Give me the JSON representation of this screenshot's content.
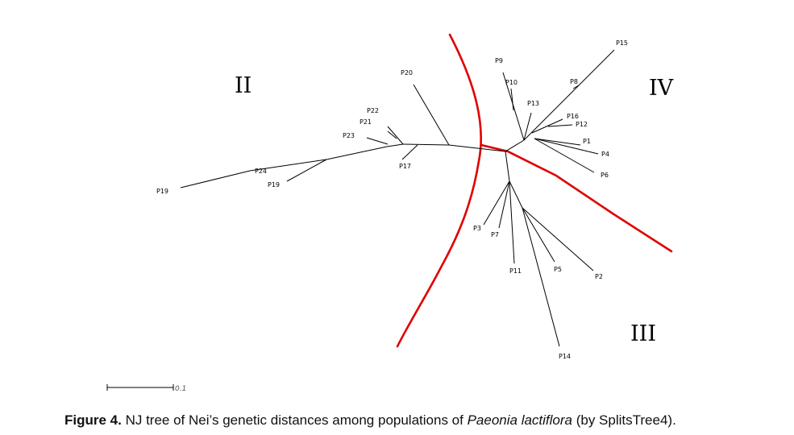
{
  "figure": {
    "caption_label": "Figure 4.",
    "caption_pre": " NJ tree of Nei’s genetic distances among populations of ",
    "caption_species": "Paeonia lactiflora",
    "caption_post": " (by SplitsTree4)."
  },
  "groups": [
    "II",
    "III",
    "IV"
  ],
  "scale_bar": {
    "label": "0.1"
  },
  "taxa": [
    "P1",
    "P2",
    "P3",
    "P4",
    "P5",
    "P6",
    "P7",
    "P8",
    "P9",
    "P10",
    "P11",
    "P12",
    "P13",
    "P14",
    "P15",
    "P16",
    "P17",
    "P19",
    "P20",
    "P21",
    "P22",
    "P23",
    "P24"
  ],
  "colors": {
    "branch": "#000000",
    "divider": "#e00000",
    "text": "#000000"
  }
}
